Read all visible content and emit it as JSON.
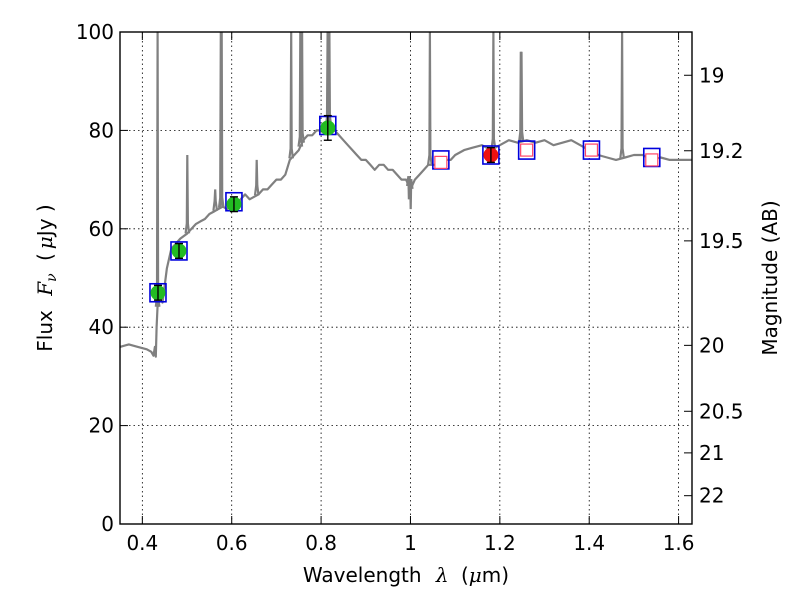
{
  "chart_data": {
    "type": "scatter",
    "title": "",
    "xlabel": "Wavelength",
    "xlabel_symbol": "λ",
    "xlabel_unit_open": "(",
    "xlabel_unit_mu": "μ",
    "xlabel_unit_close": "m)",
    "ylabel": "Flux",
    "ylabel_symbol": "F",
    "ylabel_subscript": "ν",
    "ylabel_unit_open": "(",
    "ylabel_unit_mu": "μ",
    "ylabel_unit_close": "Jy )",
    "y2label": "Magnitude (AB)",
    "xlim": [
      0.35,
      1.63
    ],
    "ylim": [
      0,
      100
    ],
    "grid": true,
    "xticks": [
      0.4,
      0.6,
      0.8,
      1.0,
      1.2,
      1.4,
      1.6
    ],
    "xtick_labels": [
      "0.4",
      "0.6",
      "0.8",
      "1",
      "1.2",
      "1.4",
      "1.6"
    ],
    "yticks": [
      0,
      20,
      40,
      60,
      80,
      100
    ],
    "ytick_labels": [
      "0",
      "20",
      "40",
      "60",
      "80",
      "100"
    ],
    "mag_ticks": [
      {
        "label": "19",
        "mag": 19.0
      },
      {
        "label": "19.2",
        "mag": 19.2
      },
      {
        "label": "19.5",
        "mag": 19.5
      },
      {
        "label": "20",
        "mag": 20.0
      },
      {
        "label": "20.5",
        "mag": 20.5
      },
      {
        "label": "21",
        "mag": 21.0
      },
      {
        "label": "22",
        "mag": 22.0
      }
    ],
    "colors": {
      "spectrum": "#808080",
      "green": "#22bb22",
      "red": "#ee1111",
      "blue_box": "#0000dd",
      "pink_box": "#ff4466"
    },
    "series": [
      {
        "name": "model spectrum",
        "type": "line",
        "x": [
          0.35,
          0.37,
          0.39,
          0.41,
          0.42,
          0.425,
          0.428,
          0.43,
          0.432,
          0.434,
          0.436,
          0.44,
          0.445,
          0.455,
          0.465,
          0.475,
          0.485,
          0.5,
          0.51,
          0.52,
          0.53,
          0.54,
          0.55,
          0.56,
          0.57,
          0.58,
          0.59,
          0.6,
          0.61,
          0.62,
          0.63,
          0.64,
          0.65,
          0.66,
          0.67,
          0.68,
          0.69,
          0.7,
          0.71,
          0.72,
          0.73,
          0.74,
          0.75,
          0.76,
          0.77,
          0.78,
          0.79,
          0.8,
          0.81,
          0.82,
          0.83,
          0.84,
          0.85,
          0.86,
          0.87,
          0.88,
          0.89,
          0.9,
          0.91,
          0.92,
          0.93,
          0.94,
          0.95,
          0.96,
          0.97,
          0.98,
          0.99,
          1.0,
          1.01,
          1.02,
          1.03,
          1.04,
          1.05,
          1.06,
          1.07,
          1.08,
          1.09,
          1.1,
          1.12,
          1.14,
          1.16,
          1.18,
          1.2,
          1.22,
          1.24,
          1.26,
          1.28,
          1.3,
          1.32,
          1.34,
          1.36,
          1.38,
          1.4,
          1.42,
          1.44,
          1.46,
          1.48,
          1.5,
          1.52,
          1.54,
          1.56,
          1.58,
          1.6,
          1.63
        ],
        "y": [
          36,
          36.5,
          36,
          35.5,
          35,
          34.2,
          36,
          34,
          40,
          44,
          47,
          48,
          45,
          52,
          56,
          57,
          58,
          59,
          60,
          61,
          61.5,
          62,
          63,
          63.5,
          64,
          64.5,
          64,
          65,
          65,
          66,
          67,
          66,
          66.5,
          67,
          68,
          68,
          69,
          70,
          70,
          71,
          74,
          75,
          76,
          78,
          79,
          79,
          80,
          80,
          80.5,
          81,
          80,
          79,
          78,
          77,
          76,
          75,
          74,
          74,
          73,
          72,
          73,
          73,
          72,
          72,
          71,
          70,
          70,
          68,
          70,
          71,
          72,
          73,
          73,
          73,
          73.5,
          74,
          74,
          75,
          76,
          76.5,
          77,
          76,
          77,
          78,
          77.5,
          78,
          77.5,
          78,
          77,
          77.5,
          78,
          77,
          76,
          75,
          74.5,
          74,
          74.5,
          75,
          75,
          74,
          74.5,
          74,
          74,
          74
        ]
      },
      {
        "name": "observed photometry (green)",
        "type": "scatter",
        "x": [
          0.435,
          0.482,
          0.605,
          0.815
        ],
        "y": [
          47,
          55.5,
          65,
          80.5
        ],
        "yerr": [
          1.5,
          1.5,
          1.5,
          2.5
        ]
      },
      {
        "name": "observed photometry (red)",
        "type": "scatter",
        "x": [
          1.18
        ],
        "y": [
          75
        ],
        "yerr": [
          1.5
        ]
      },
      {
        "name": "model photometry (blue squares)",
        "type": "scatter",
        "x": [
          0.435,
          0.482,
          0.605,
          0.815,
          1.068,
          1.18,
          1.26,
          1.405,
          1.54
        ],
        "y": [
          47,
          55.5,
          65.5,
          81,
          74,
          75,
          76,
          76,
          74.5
        ]
      },
      {
        "name": "upper limits (pink open squares)",
        "type": "scatter",
        "x": [
          1.068,
          1.26,
          1.405,
          1.54
        ],
        "y": [
          73.5,
          76,
          76,
          74
        ]
      }
    ],
    "emission_lines": [
      {
        "x": 0.4341,
        "peak": 100
      },
      {
        "x": 0.5007,
        "peak": 75
      },
      {
        "x": 0.563,
        "peak": 68
      },
      {
        "x": 0.5755,
        "peak": 100
      },
      {
        "x": 0.5775,
        "peak": 100
      },
      {
        "x": 0.656,
        "peak": 74
      },
      {
        "x": 0.733,
        "peak": 100
      },
      {
        "x": 0.7535,
        "peak": 100
      },
      {
        "x": 0.7575,
        "peak": 100
      },
      {
        "x": 0.8145,
        "peak": 100
      },
      {
        "x": 0.8185,
        "peak": 100
      },
      {
        "x": 0.9965,
        "peak": 66
      },
      {
        "x": 1.0005,
        "peak": 64
      },
      {
        "x": 1.0435,
        "peak": 100
      },
      {
        "x": 1.1855,
        "peak": 100
      },
      {
        "x": 1.247,
        "peak": 96
      },
      {
        "x": 1.2485,
        "peak": 96
      },
      {
        "x": 1.4735,
        "peak": 100
      }
    ]
  }
}
